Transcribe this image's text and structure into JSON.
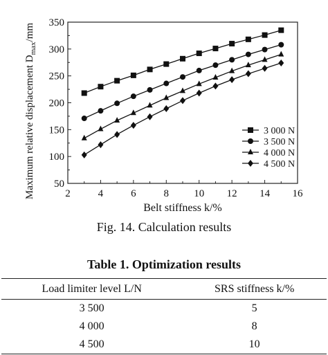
{
  "figure": {
    "caption": "Fig. 14.    Calculation results"
  },
  "chart_data": {
    "type": "line",
    "xlabel": "Belt stiffness k/%",
    "ylabel": "Maximum relative displacement D_max/mm",
    "xlim": [
      2,
      16
    ],
    "ylim": [
      50,
      350
    ],
    "xticks": [
      2,
      4,
      6,
      8,
      10,
      12,
      14,
      16
    ],
    "yticks": [
      50,
      100,
      150,
      200,
      250,
      300,
      350
    ],
    "grid": false,
    "legend_position": "bottom-right",
    "x": [
      3,
      4,
      5,
      6,
      7,
      8,
      9,
      10,
      11,
      12,
      13,
      14,
      15
    ],
    "series": [
      {
        "name": "3 000 N",
        "marker": "square",
        "values": [
          218,
          230,
          241,
          251,
          262,
          272,
          282,
          292,
          301,
          310,
          318,
          326,
          335
        ]
      },
      {
        "name": "3 500 N",
        "marker": "circle",
        "values": [
          171,
          185,
          199,
          212,
          224,
          236,
          248,
          260,
          270,
          280,
          290,
          299,
          308
        ]
      },
      {
        "name": "4 000 N",
        "marker": "triangle",
        "values": [
          134,
          151,
          167,
          181,
          195,
          209,
          222,
          235,
          247,
          259,
          270,
          280,
          290
        ]
      },
      {
        "name": "4 500 N",
        "marker": "diamond",
        "values": [
          103,
          122,
          141,
          158,
          174,
          189,
          204,
          218,
          231,
          243,
          254,
          264,
          274
        ]
      }
    ]
  },
  "table": {
    "title": "Table 1.    Optimization results",
    "headers": [
      "Load limiter level L/N",
      "SRS stiffness k/%"
    ],
    "rows": [
      [
        "3 500",
        "5"
      ],
      [
        "4 000",
        "8"
      ],
      [
        "4 500",
        "10"
      ]
    ]
  }
}
